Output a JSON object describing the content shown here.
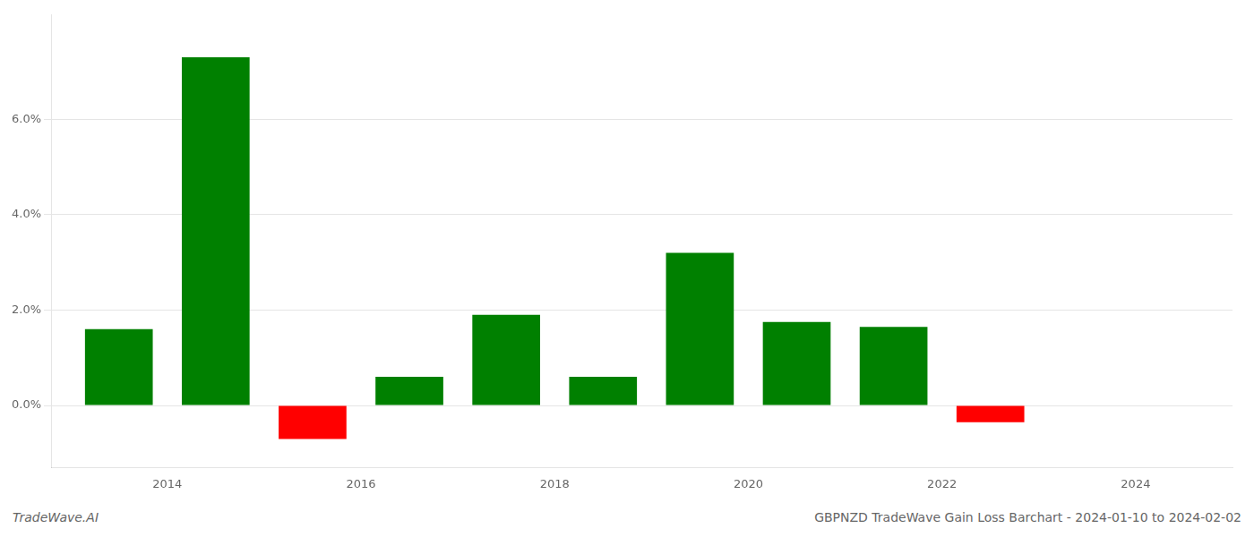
{
  "chart_data": {
    "type": "bar",
    "x": [
      2013.5,
      2014.5,
      2015.5,
      2016.5,
      2017.5,
      2018.5,
      2019.5,
      2020.5,
      2021.5,
      2022.5
    ],
    "values": [
      0.016,
      0.073,
      -0.007,
      0.006,
      0.019,
      0.006,
      0.032,
      0.0175,
      0.0165,
      -0.0035
    ],
    "colors": [
      "#008000",
      "#008000",
      "#ff0000",
      "#008000",
      "#008000",
      "#008000",
      "#008000",
      "#008000",
      "#008000",
      "#ff0000"
    ],
    "xlim": [
      2012.8,
      2025.0
    ],
    "ylim": [
      -0.013,
      0.082
    ],
    "xticks": [
      2014,
      2016,
      2018,
      2020,
      2022,
      2024
    ],
    "yticks": [
      {
        "value": 0.0,
        "label": "0.0%"
      },
      {
        "value": 0.02,
        "label": "2.0%"
      },
      {
        "value": 0.04,
        "label": "4.0%"
      },
      {
        "value": 0.06,
        "label": "6.0%"
      }
    ],
    "grid": true,
    "annotations": [
      "TradeWave.AI",
      "GBPNZD TradeWave Gain Loss Barchart - 2024-01-10 to 2024-02-02"
    ]
  }
}
